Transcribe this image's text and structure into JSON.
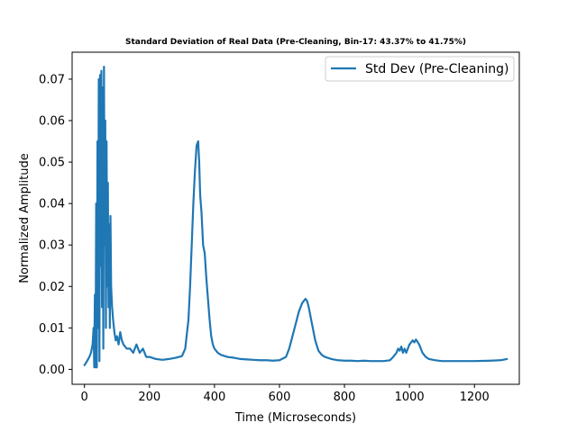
{
  "chart_data": {
    "type": "line",
    "title": "Standard Deviation of Real Data (Pre-Cleaning, Bin-17: 43.37% to 41.75%)",
    "xlabel": "Time (Microseconds)",
    "ylabel": "Normalized Amplitude",
    "xlim": [
      -38,
      1338
    ],
    "ylim": [
      -0.0036,
      0.0765
    ],
    "xticks": [
      0,
      200,
      400,
      600,
      800,
      1000,
      1200
    ],
    "yticks": [
      0.0,
      0.01,
      0.02,
      0.03,
      0.04,
      0.05,
      0.06,
      0.07
    ],
    "xtick_labels": [
      "0",
      "200",
      "400",
      "600",
      "800",
      "1000",
      "1200"
    ],
    "ytick_labels": [
      "0.00",
      "0.01",
      "0.02",
      "0.03",
      "0.04",
      "0.05",
      "0.06",
      "0.07"
    ],
    "grid": false,
    "legend_position": "upper right",
    "series": [
      {
        "name": "Std Dev (Pre-Cleaning)",
        "color": "#1f77b4",
        "x": [
          0,
          8,
          15,
          20,
          25,
          28,
          30,
          32,
          34,
          36,
          38,
          40,
          42,
          44,
          46,
          48,
          50,
          52,
          54,
          56,
          58,
          60,
          62,
          64,
          66,
          68,
          70,
          72,
          74,
          76,
          78,
          80,
          82,
          85,
          88,
          92,
          96,
          100,
          105,
          110,
          115,
          120,
          130,
          140,
          150,
          160,
          170,
          180,
          190,
          200,
          220,
          240,
          260,
          280,
          300,
          310,
          320,
          325,
          330,
          335,
          340,
          345,
          350,
          353,
          356,
          360,
          365,
          370,
          375,
          380,
          385,
          390,
          395,
          400,
          410,
          420,
          440,
          460,
          480,
          500,
          520,
          540,
          560,
          580,
          600,
          620,
          630,
          640,
          650,
          660,
          670,
          680,
          685,
          690,
          700,
          710,
          720,
          730,
          740,
          760,
          780,
          800,
          820,
          840,
          860,
          880,
          900,
          920,
          940,
          950,
          960,
          965,
          970,
          975,
          980,
          985,
          990,
          1000,
          1010,
          1015,
          1020,
          1030,
          1040,
          1050,
          1060,
          1080,
          1100,
          1150,
          1200,
          1250,
          1280,
          1300
        ],
        "y": [
          0.001,
          0.002,
          0.003,
          0.004,
          0.006,
          0.01,
          0.0005,
          0.018,
          0.0005,
          0.04,
          0.0005,
          0.055,
          0.01,
          0.07,
          0.002,
          0.071,
          0.025,
          0.072,
          0.015,
          0.068,
          0.005,
          0.073,
          0.03,
          0.06,
          0.01,
          0.055,
          0.02,
          0.045,
          0.015,
          0.035,
          0.01,
          0.037,
          0.02,
          0.015,
          0.012,
          0.009,
          0.007,
          0.008,
          0.006,
          0.009,
          0.007,
          0.006,
          0.005,
          0.005,
          0.004,
          0.006,
          0.004,
          0.005,
          0.003,
          0.003,
          0.0025,
          0.0023,
          0.0025,
          0.0028,
          0.0032,
          0.005,
          0.012,
          0.02,
          0.03,
          0.04,
          0.048,
          0.054,
          0.055,
          0.05,
          0.042,
          0.038,
          0.03,
          0.028,
          0.022,
          0.017,
          0.012,
          0.008,
          0.006,
          0.005,
          0.004,
          0.0035,
          0.003,
          0.0028,
          0.0025,
          0.0024,
          0.0023,
          0.0022,
          0.0022,
          0.0021,
          0.0022,
          0.003,
          0.005,
          0.008,
          0.011,
          0.014,
          0.016,
          0.017,
          0.0165,
          0.015,
          0.011,
          0.007,
          0.0045,
          0.0035,
          0.003,
          0.0025,
          0.0022,
          0.0021,
          0.0021,
          0.002,
          0.0021,
          0.002,
          0.002,
          0.002,
          0.0022,
          0.003,
          0.004,
          0.005,
          0.0045,
          0.0055,
          0.004,
          0.005,
          0.004,
          0.006,
          0.007,
          0.0065,
          0.0072,
          0.006,
          0.004,
          0.003,
          0.0025,
          0.0022,
          0.002,
          0.002,
          0.002,
          0.0021,
          0.0022,
          0.0025
        ]
      }
    ]
  }
}
